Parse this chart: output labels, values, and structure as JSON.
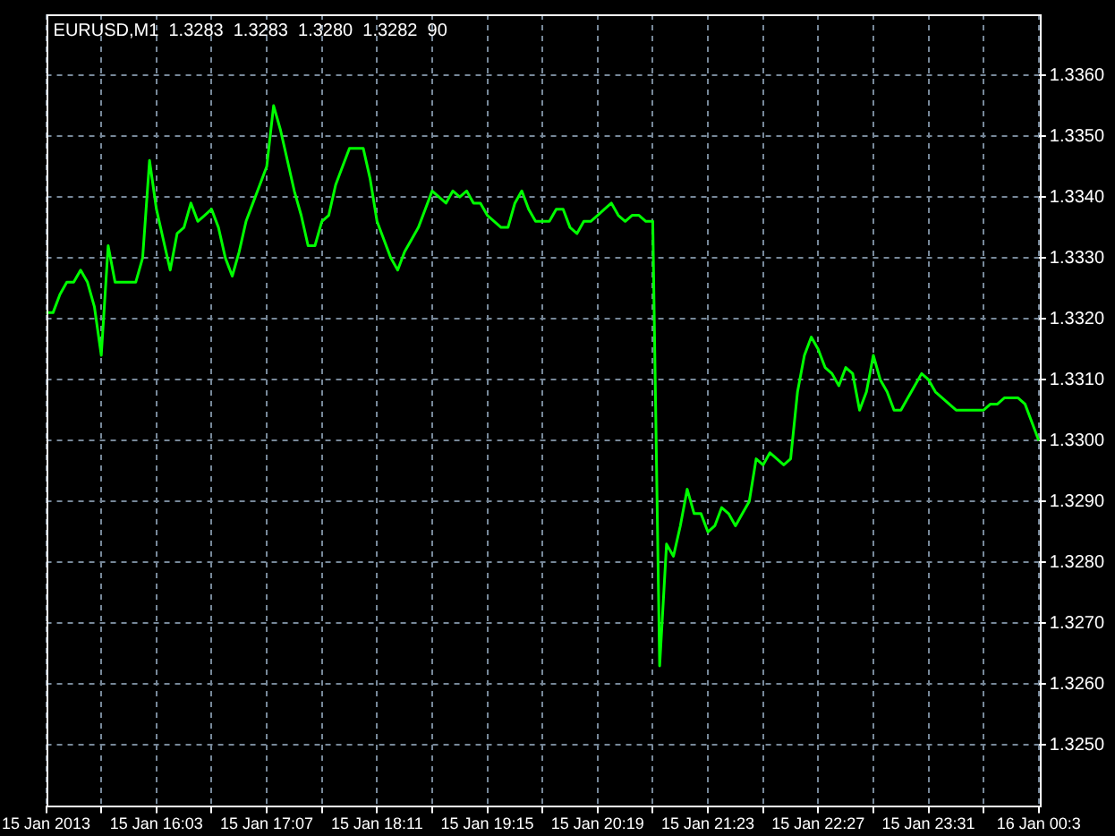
{
  "chart_data": {
    "type": "line",
    "title": "EURUSD,M1  1.3283  1.3283  1.3280  1.3282  90",
    "categories": [
      "15 Jan 2013",
      null,
      null,
      null,
      null,
      null,
      null,
      null,
      null,
      null,
      null,
      null,
      null,
      null,
      null,
      null,
      "15 Jan 16:03",
      null,
      null,
      null,
      null,
      null,
      null,
      null,
      null,
      null,
      null,
      null,
      null,
      null,
      null,
      null,
      "15 Jan 17:07",
      null,
      null,
      null,
      null,
      null,
      null,
      null,
      null,
      null,
      null,
      null,
      null,
      null,
      null,
      null,
      "15 Jan 18:11",
      null,
      null,
      null,
      null,
      null,
      null,
      null,
      null,
      null,
      null,
      null,
      null,
      null,
      null,
      null,
      "15 Jan 19:15",
      null,
      null,
      null,
      null,
      null,
      null,
      null,
      null,
      null,
      null,
      null,
      null,
      null,
      null,
      null,
      "15 Jan 20:19",
      null,
      null,
      null,
      null,
      null,
      null,
      null,
      null,
      null,
      null,
      null,
      null,
      null,
      null,
      null,
      "15 Jan 21:23",
      null,
      null,
      null,
      null,
      null,
      null,
      null,
      null,
      null,
      null,
      null,
      null,
      null,
      null,
      null,
      "15 Jan 22:27",
      null,
      null,
      null,
      null,
      null,
      null,
      null,
      null,
      null,
      null,
      null,
      null,
      null,
      null,
      null,
      "15 Jan 23:31",
      null,
      null,
      null,
      null,
      null,
      null,
      null,
      null,
      null,
      null,
      null,
      null,
      null,
      null,
      null,
      "16 Jan 00:3"
    ],
    "values": [
      1.3321,
      1.3321,
      1.3324,
      1.3326,
      1.3326,
      1.3328,
      1.3326,
      1.3322,
      1.3314,
      1.3332,
      1.3326,
      1.3326,
      1.3326,
      1.3326,
      1.333,
      1.3346,
      1.3338,
      1.3333,
      1.3328,
      1.3334,
      1.3335,
      1.3339,
      1.3336,
      1.3337,
      1.3338,
      1.3335,
      1.333,
      1.3327,
      1.3331,
      1.3336,
      1.3339,
      1.3342,
      1.3345,
      1.3355,
      1.3351,
      1.3346,
      1.3341,
      1.3337,
      1.3332,
      1.3332,
      1.3336,
      1.3337,
      1.3342,
      1.3345,
      1.3348,
      1.3348,
      1.3348,
      1.3343,
      1.3336,
      1.3333,
      1.333,
      1.3328,
      1.3331,
      1.3333,
      1.3335,
      1.3338,
      1.3341,
      1.334,
      1.3339,
      1.3341,
      1.334,
      1.3341,
      1.3339,
      1.3339,
      1.3337,
      1.3336,
      1.3335,
      1.3335,
      1.3339,
      1.3341,
      1.3338,
      1.3336,
      1.3336,
      1.3336,
      1.3338,
      1.3338,
      1.3335,
      1.3334,
      1.3336,
      1.3336,
      1.3337,
      1.3338,
      1.3339,
      1.3337,
      1.3336,
      1.3337,
      1.3337,
      1.3336,
      1.3336,
      1.3263,
      1.3283,
      1.3281,
      1.3286,
      1.3292,
      1.3288,
      1.3288,
      1.3285,
      1.3286,
      1.3289,
      1.3288,
      1.3286,
      1.3288,
      1.329,
      1.3297,
      1.3296,
      1.3298,
      1.3297,
      1.3296,
      1.3297,
      1.3308,
      1.3314,
      1.3317,
      1.3315,
      1.3312,
      1.3311,
      1.3309,
      1.3312,
      1.3311,
      1.3305,
      1.3308,
      1.3314,
      1.331,
      1.3308,
      1.3305,
      1.3305,
      1.3307,
      1.3309,
      1.3311,
      1.331,
      1.3308,
      1.3307,
      1.3306,
      1.3305,
      1.3305,
      1.3305,
      1.3305,
      1.3305,
      1.3306,
      1.3306,
      1.3307,
      1.3307,
      1.3307,
      1.3306,
      1.3303,
      1.33
    ],
    "color": "#00ff00",
    "ylim": [
      1.324,
      1.337
    ],
    "yticks": [
      {
        "value": 1.325,
        "label": "1.3250"
      },
      {
        "value": 1.326,
        "label": "1.3260"
      },
      {
        "value": 1.327,
        "label": "1.3270"
      },
      {
        "value": 1.328,
        "label": "1.3280"
      },
      {
        "value": 1.329,
        "label": "1.3290"
      },
      {
        "value": 1.33,
        "label": "1.3300"
      },
      {
        "value": 1.331,
        "label": "1.3310"
      },
      {
        "value": 1.332,
        "label": "1.3320"
      },
      {
        "value": 1.333,
        "label": "1.3330"
      },
      {
        "value": 1.334,
        "label": "1.3340"
      },
      {
        "value": 1.335,
        "label": "1.3350"
      },
      {
        "value": 1.336,
        "label": "1.3360"
      }
    ],
    "grid": true,
    "marker": "none",
    "line_style": "solid"
  }
}
